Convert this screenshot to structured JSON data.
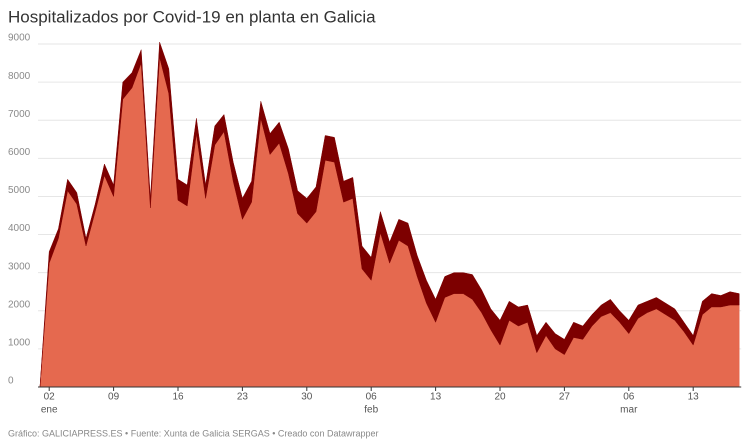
{
  "chart_data": {
    "type": "stacked-area",
    "title": "Hospitalizados por Covid-19 en planta en Galicia",
    "footer": "Gráfico: GALICIAPRESS.ES • Fuente: Xunta de Galicia SERGAS • Creado con Datawrapper",
    "categories": [
      null,
      "02",
      null,
      null,
      null,
      null,
      null,
      null,
      "09",
      null,
      null,
      null,
      null,
      null,
      null,
      "16",
      null,
      null,
      null,
      null,
      null,
      null,
      "23",
      null,
      null,
      null,
      null,
      null,
      null,
      "30",
      null,
      null,
      null,
      null,
      null,
      null,
      "06",
      null,
      null,
      null,
      null,
      null,
      null,
      "13",
      null,
      null,
      null,
      null,
      null,
      null,
      "20",
      null,
      null,
      null,
      null,
      null,
      null,
      "27",
      null,
      null,
      null,
      null,
      null,
      null,
      "06",
      null,
      null,
      null,
      null,
      null,
      null,
      "13",
      null,
      null,
      null,
      null,
      null
    ],
    "months": [
      null,
      "ene",
      null,
      null,
      null,
      null,
      null,
      null,
      null,
      null,
      null,
      null,
      null,
      null,
      null,
      null,
      null,
      null,
      null,
      null,
      null,
      null,
      null,
      null,
      null,
      null,
      null,
      null,
      null,
      null,
      null,
      null,
      null,
      null,
      null,
      null,
      "feb",
      null,
      null,
      null,
      null,
      null,
      null,
      null,
      null,
      null,
      null,
      null,
      null,
      null,
      null,
      null,
      null,
      null,
      null,
      null,
      null,
      null,
      null,
      null,
      null,
      null,
      null,
      null,
      "mar",
      null,
      null,
      null,
      null,
      null,
      null,
      null,
      null,
      null,
      null,
      null,
      null
    ],
    "series": [
      {
        "color": "#e5694f",
        "values": [
          0,
          3250,
          3900,
          5150,
          4800,
          3700,
          4600,
          5550,
          5000,
          7550,
          7850,
          8500,
          4700,
          8650,
          7700,
          4900,
          4750,
          6650,
          4950,
          6350,
          6700,
          5400,
          4400,
          4850,
          7050,
          6100,
          6400,
          5600,
          4550,
          4300,
          4600,
          5950,
          5900,
          4850,
          4950,
          3100,
          2800,
          4050,
          3250,
          3850,
          3700,
          2900,
          2200,
          1700,
          2350,
          2450,
          2450,
          2300,
          1950,
          1500,
          1100,
          1750,
          1600,
          1700,
          900,
          1350,
          1000,
          850,
          1300,
          1250,
          1600,
          1850,
          1950,
          1700,
          1400,
          1800,
          1950,
          2050,
          1900,
          1750,
          1450,
          1100,
          1900,
          2100,
          2100,
          2150,
          2150
        ]
      },
      {
        "color": "#7d0000",
        "values": [
          0,
          300,
          250,
          300,
          300,
          200,
          200,
          300,
          300,
          450,
          400,
          350,
          250,
          400,
          650,
          550,
          550,
          400,
          350,
          500,
          450,
          500,
          550,
          550,
          450,
          550,
          550,
          650,
          600,
          650,
          650,
          650,
          650,
          550,
          550,
          600,
          600,
          550,
          550,
          550,
          600,
          550,
          600,
          600,
          550,
          550,
          550,
          650,
          600,
          550,
          650,
          500,
          500,
          450,
          450,
          350,
          400,
          400,
          400,
          350,
          300,
          300,
          350,
          300,
          350,
          350,
          300,
          300,
          300,
          300,
          250,
          250,
          350,
          350,
          300,
          350,
          300
        ]
      }
    ],
    "ylim": [
      0,
      9000
    ],
    "yticks": [
      0,
      1000,
      2000,
      3000,
      4000,
      5000,
      6000,
      7000,
      8000,
      9000
    ],
    "grid": true
  }
}
